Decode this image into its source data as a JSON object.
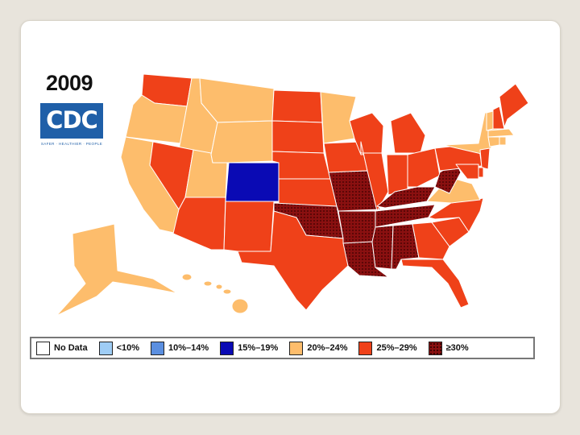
{
  "map": {
    "year": "2009",
    "logo": {
      "text": "CDC",
      "tagline": "SAFER · HEALTHIER · PEOPLE"
    }
  },
  "legend": [
    {
      "id": "nodata",
      "label": "No Data",
      "color": "#ffffff",
      "hatch": false
    },
    {
      "id": "lt10",
      "label": "<10%",
      "color": "#9fcdf5",
      "hatch": false
    },
    {
      "id": "10to14",
      "label": "10%–14%",
      "color": "#5b8fe0",
      "hatch": false
    },
    {
      "id": "15to19",
      "label": "15%–19%",
      "color": "#0a0ab4",
      "hatch": false
    },
    {
      "id": "20to24",
      "label": "20%–24%",
      "color": "#fdbd6c",
      "hatch": false
    },
    {
      "id": "25to29",
      "label": "25%–29%",
      "color": "#ef4119",
      "hatch": false
    },
    {
      "id": "ge30",
      "label": "≥30%",
      "color": "#8a1010",
      "hatch": true
    }
  ],
  "states": {
    "WA": "25to29",
    "OR": "20to24",
    "CA": "20to24",
    "ID": "20to24",
    "NV": "25to29",
    "UT": "20to24",
    "AZ": "25to29",
    "MT": "20to24",
    "WY": "20to24",
    "CO": "15to19",
    "NM": "25to29",
    "ND": "25to29",
    "SD": "25to29",
    "NE": "25to29",
    "KS": "25to29",
    "OK": "ge30",
    "TX": "25to29",
    "MN": "20to24",
    "IA": "25to29",
    "MO": "ge30",
    "AR": "ge30",
    "LA": "ge30",
    "WI": "25to29",
    "IL": "25to29",
    "MI": "25to29",
    "IN": "25to29",
    "OH": "25to29",
    "KY": "ge30",
    "TN": "ge30",
    "MS": "ge30",
    "AL": "ge30",
    "GA": "25to29",
    "FL": "25to29",
    "SC": "25to29",
    "NC": "25to29",
    "VA": "20to24",
    "WV": "ge30",
    "PA": "25to29",
    "NY": "20to24",
    "VT": "20to24",
    "NH": "25to29",
    "ME": "25to29",
    "MA": "20to24",
    "CT": "20to24",
    "RI": "20to24",
    "NJ": "25to29",
    "DE": "25to29",
    "MD": "25to29",
    "AK": "20to24",
    "HI": "20to24"
  }
}
